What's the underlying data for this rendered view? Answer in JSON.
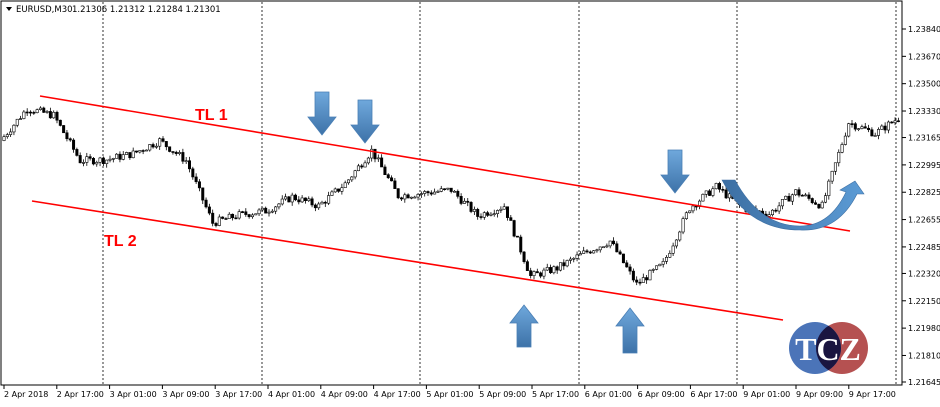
{
  "header": {
    "symbol": "EURUSD,M30",
    "ohlc": "1.21306 1.21312 1.21284 1.21301"
  },
  "chart_data": {
    "type": "candlestick",
    "symbol": "EURUSD",
    "timeframe": "M30",
    "ylim": [
      1.21645,
      1.24
    ],
    "y_ticks": [
      "1.23840",
      "1.23670",
      "1.23500",
      "1.23330",
      "1.23165",
      "1.22995",
      "1.22825",
      "1.22655",
      "1.22485",
      "1.22320",
      "1.22150",
      "1.21980",
      "1.21810",
      "1.21645"
    ],
    "x_ticks": [
      "2 Apr 2018",
      "2 Apr 17:00",
      "3 Apr 01:00",
      "3 Apr 09:00",
      "3 Apr 17:00",
      "4 Apr 01:00",
      "4 Apr 09:00",
      "4 Apr 17:00",
      "5 Apr 01:00",
      "5 Apr 09:00",
      "5 Apr 17:00",
      "6 Apr 01:00",
      "6 Apr 09:00",
      "6 Apr 17:00",
      "9 Apr 01:00",
      "9 Apr 09:00",
      "9 Apr 17:00"
    ],
    "approx_close_every_4h": [
      1.23146,
      1.23346,
      1.23303,
      1.23021,
      1.23028,
      1.23065,
      1.23146,
      1.23021,
      1.22634,
      1.22684,
      1.22709,
      1.22796,
      1.2274,
      1.22878,
      1.23084,
      1.22803,
      1.22821,
      1.2284,
      1.22678,
      1.2274,
      1.22303,
      1.22353,
      1.22446,
      1.22521,
      1.22253,
      1.22378,
      1.22728,
      1.22859,
      1.22728,
      1.2269,
      1.22828,
      1.2274,
      1.23259,
      1.2319,
      1.23301
    ],
    "annotations": {
      "trendline_1": {
        "label": "TL 1",
        "color": "#ff0000"
      },
      "trendline_2": {
        "label": "TL 2",
        "color": "#ff0000"
      },
      "arrows_down": 3,
      "arrows_up": 2,
      "curved_arrow": "rounding bottom breakout",
      "arrow_color": "#5b9bd5"
    },
    "grid": "vertical dashed day separators"
  },
  "logo": {
    "text": "TCZ"
  }
}
